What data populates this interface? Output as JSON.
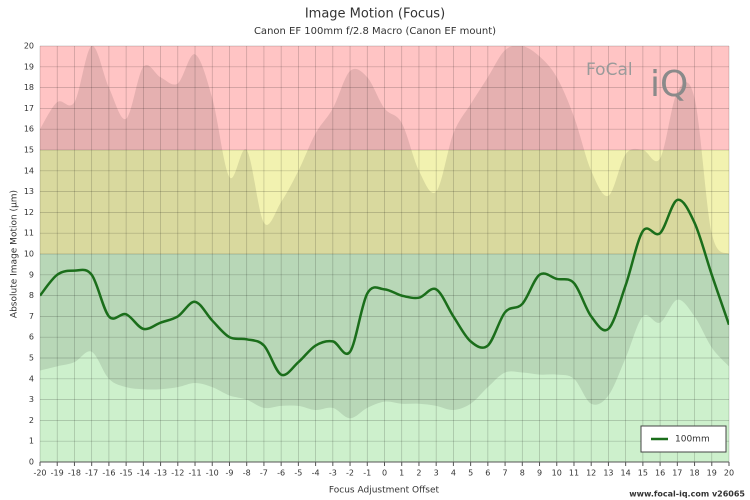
{
  "chart_data": {
    "type": "line",
    "title": "Image Motion (Focus)",
    "subtitle": "Canon EF 100mm f/2.8 Macro (Canon EF mount)",
    "x_label": "Focus Adjustment Offset",
    "y_label": "Absolute Image Motion (µm)",
    "x": [
      -20,
      -19,
      -18,
      -17,
      -16,
      -15,
      -14,
      -13,
      -12,
      -11,
      -10,
      -9,
      -8,
      -7,
      -6,
      -5,
      -4,
      -3,
      -2,
      -1,
      0,
      1,
      2,
      3,
      4,
      5,
      6,
      7,
      8,
      9,
      10,
      11,
      12,
      13,
      14,
      15,
      16,
      17,
      18,
      19,
      20
    ],
    "series": [
      {
        "name": "100mm",
        "color": "#1b6e1b",
        "values": [
          8.0,
          9.0,
          9.2,
          9.0,
          7.0,
          7.1,
          6.4,
          6.7,
          7.0,
          7.7,
          6.8,
          6.0,
          5.9,
          5.6,
          4.2,
          4.8,
          5.6,
          5.8,
          5.3,
          8.1,
          8.3,
          8.0,
          7.9,
          8.3,
          7.0,
          5.8,
          5.6,
          7.2,
          7.6,
          9.0,
          8.8,
          8.6,
          7.0,
          6.4,
          8.5,
          11.1,
          11.0,
          12.6,
          11.5,
          9.0,
          6.6
        ]
      }
    ],
    "band": {
      "color": "rgba(0,0,0,0.1)",
      "upper": [
        16.0,
        17.3,
        17.3,
        20.0,
        18.0,
        16.5,
        19.0,
        18.5,
        18.2,
        19.6,
        17.5,
        13.7,
        15.0,
        11.5,
        12.5,
        14.0,
        15.8,
        17.0,
        18.8,
        18.5,
        17.0,
        16.3,
        14.0,
        13.0,
        15.8,
        17.2,
        18.5,
        19.8,
        20.0,
        19.5,
        18.5,
        16.6,
        14.0,
        12.8,
        14.8,
        15.0,
        14.6,
        17.8,
        17.5,
        11.0,
        10.0
      ],
      "lower": [
        4.4,
        4.6,
        4.8,
        5.3,
        4.0,
        3.6,
        3.5,
        3.5,
        3.6,
        3.8,
        3.6,
        3.2,
        3.0,
        2.6,
        2.7,
        2.7,
        2.5,
        2.6,
        2.1,
        2.6,
        2.9,
        2.8,
        2.8,
        2.7,
        2.5,
        2.8,
        3.6,
        4.3,
        4.3,
        4.2,
        4.2,
        4.0,
        2.8,
        3.2,
        5.0,
        7.0,
        6.7,
        7.8,
        7.0,
        5.5,
        4.6
      ]
    },
    "zones": [
      {
        "from": 0,
        "to": 10,
        "color": "#cdf0cc"
      },
      {
        "from": 10,
        "to": 15,
        "color": "#f2f2b0"
      },
      {
        "from": 15,
        "to": 20,
        "color": "#ffc4c4"
      }
    ],
    "xlim": [
      -20,
      20
    ],
    "ylim": [
      0,
      20
    ],
    "xticks": [
      -20,
      -19,
      -18,
      -17,
      -16,
      -15,
      -14,
      -13,
      -12,
      -11,
      -10,
      -9,
      -8,
      -7,
      -6,
      -5,
      -4,
      -3,
      -2,
      -1,
      0,
      1,
      2,
      3,
      4,
      5,
      6,
      7,
      8,
      9,
      10,
      11,
      12,
      13,
      14,
      15,
      16,
      17,
      18,
      19,
      20
    ],
    "yticks": [
      0,
      1,
      2,
      3,
      4,
      5,
      6,
      7,
      8,
      9,
      10,
      11,
      12,
      13,
      14,
      15,
      16,
      17,
      18,
      19,
      20
    ],
    "grid": true,
    "legend": "bottom-right",
    "logo": [
      "FoCal",
      "iQ"
    ],
    "footer": "www.focal-iq.com  v26065"
  }
}
